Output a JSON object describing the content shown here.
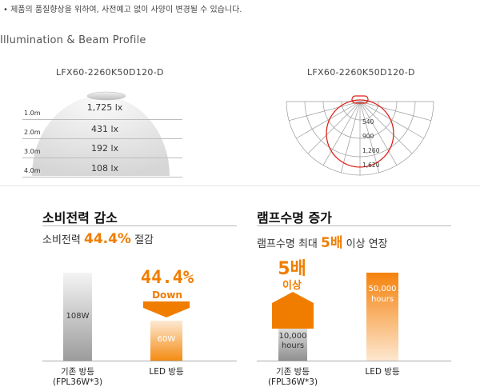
{
  "notice": "• 제품의 품질향상을 위하여, 사전예고 없이 사양이 변경될 수 있습니다.",
  "section_title": "Illumination & Beam Profile",
  "left_diagram": {
    "model": "LFX60-2260K50D120-D",
    "rows": [
      {
        "distance": "1.0m",
        "lux": "1,725 lx"
      },
      {
        "distance": "2.0m",
        "lux": "431 lx"
      },
      {
        "distance": "3.0m",
        "lux": "192 lx"
      },
      {
        "distance": "4.0m",
        "lux": "108 lx"
      }
    ]
  },
  "right_diagram": {
    "model": "LFX60-2260K50D120-D",
    "rings": [
      "540",
      "900",
      "1,260",
      "1,620"
    ]
  },
  "power": {
    "heading": "소비전력 감소",
    "sub_prefix": "소비전력 ",
    "sub_value": "44.4%",
    "sub_suffix": " 절감",
    "old_bar_label": "108W",
    "new_bar_label": "60W",
    "big_value": "44.4%",
    "down_label": "Down",
    "old_caption_line1": "기존 방등",
    "old_caption_line2": "(FPL36W*3)",
    "new_caption": "LED 방등",
    "colors": {
      "accent": "#f07d00",
      "gray": "#a9a9a9"
    }
  },
  "life": {
    "heading": "램프수명 증가",
    "sub_prefix": "램프수명 최대 ",
    "sub_value": "5배",
    "sub_suffix": " 이상 연장",
    "big_top": "5배",
    "big_bottom": "이상",
    "old_bar_line1": "10,000",
    "old_bar_line2": "hours",
    "new_bar_line1": "50,000",
    "new_bar_line2": "hours",
    "old_caption_line1": "기존 방등",
    "old_caption_line2": "(FPL36W*3)",
    "new_caption": "LED 방등"
  }
}
